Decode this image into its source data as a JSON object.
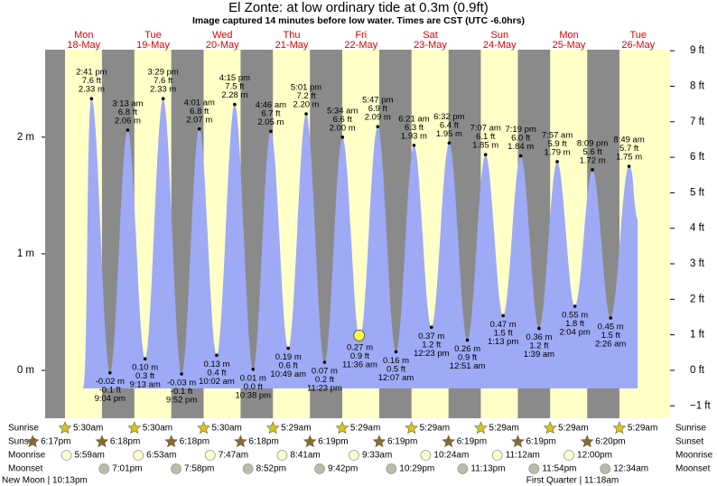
{
  "chart_data": {
    "type": "tide",
    "title": "El Zonte: at low  ordinary tide at 0.3m (0.9ft)",
    "subtitle": "Image captured 14 minutes before low water. Times are CST (UTC -6.0hrs)",
    "days": {
      "weekday": [
        null,
        "Mon",
        "Tue",
        "Wed",
        "Thu",
        "Fri",
        "Sat",
        "Sun",
        "Mon",
        "Tue"
      ],
      "date": [
        null,
        "18-May",
        "19-May",
        "20-May",
        "21-May",
        "22-May",
        "23-May",
        "24-May",
        "25-May",
        "26-May"
      ]
    },
    "series": [
      {
        "color": "#9eaaf6",
        "times": [
          "2:41 pm",
          "9:04 pm",
          "3:13 am",
          "9:13 am",
          "3:29 pm",
          "9:52 pm",
          "4:01 am",
          "10:02 am",
          "4:15 pm",
          "10:38 pm",
          "4:46 am",
          "10:49 am",
          "5:01 pm",
          "11:23 pm",
          "5:34 am",
          "11:36 am",
          "5:47 pm",
          "12:07 am",
          "6:21 am",
          "12:23 pm",
          "6:32 pm",
          "12:51 am",
          "7:07 am",
          "1:13 pm",
          "7:19 pm",
          "1:39 am",
          "7:57 am",
          "2:04 pm",
          "8:09 pm",
          "2:26 am",
          "8:49 am"
        ],
        "values": [
          2.33,
          -0.02,
          2.06,
          0.1,
          2.33,
          -0.03,
          2.07,
          0.13,
          2.28,
          0.01,
          2.05,
          0.19,
          2.2,
          0.07,
          2.0,
          0.27,
          2.09,
          0.16,
          1.93,
          0.37,
          1.95,
          0.26,
          1.85,
          0.47,
          1.84,
          0.36,
          1.79,
          0.55,
          1.72,
          0.45,
          1.75
        ],
        "value_labels": [
          "2.33 m",
          "-0.02 m",
          "2.06 m",
          "0.10 m",
          "2.33 m",
          "-0.03 m",
          "2.07 m",
          "0.13 m",
          "2.28 m",
          "0.01 m",
          "2.05 m",
          "0.19 m",
          "2.20 m",
          "0.07 m",
          "2.00 m",
          "0.27 m",
          "2.09 m",
          "0.16 m",
          "1.93 m",
          "0.37 m",
          "1.95 m",
          "0.26 m",
          "1.85 m",
          "0.47 m",
          "1.84 m",
          "0.36 m",
          "1.79 m",
          "0.55 m",
          "1.72 m",
          "0.45 m",
          "1.75 m"
        ],
        "ft_labels": [
          "7.6 ft",
          "-0.1 ft",
          "6.8 ft",
          "0.3 ft",
          "7.6 ft",
          "-0.1 ft",
          "6.8 ft",
          "0.4 ft",
          "7.5 ft",
          "0.0 ft",
          "6.7 ft",
          "0.6 ft",
          "7.2 ft",
          "0.2 ft",
          "6.6 ft",
          "0.9 ft",
          "6.9 ft",
          "0.5 ft",
          "6.3 ft",
          "1.2 ft",
          "6.4 ft",
          "0.9 ft",
          "6.1 ft",
          "1.5 ft",
          "6.0 ft",
          "1.2 ft",
          "5.9 ft",
          "1.8 ft",
          "5.6 ft",
          "1.5 ft",
          "5.7 ft"
        ]
      }
    ],
    "current": {
      "value": 0.3,
      "minutes_before_low": 14,
      "color": "#ffff44"
    },
    "ylim": [
      -0.41,
      2.75
    ],
    "yticks": [
      {
        "value": 0,
        "label": "0 m"
      },
      {
        "value": 1,
        "label": "1 m"
      },
      {
        "value": 2,
        "label": "2 m"
      }
    ],
    "y2lim": [
      -1.35,
      9.03
    ],
    "y2ticks": [
      {
        "value": -1,
        "label": "−1 ft"
      },
      {
        "value": 0,
        "label": "0 ft"
      },
      {
        "value": 1,
        "label": "1 ft"
      },
      {
        "value": 2,
        "label": "2 ft"
      },
      {
        "value": 3,
        "label": "3 ft"
      },
      {
        "value": 4,
        "label": "4 ft"
      },
      {
        "value": 5,
        "label": "5 ft"
      },
      {
        "value": 6,
        "label": "6 ft"
      },
      {
        "value": 7,
        "label": "7 ft"
      },
      {
        "value": 8,
        "label": "8 ft"
      },
      {
        "value": 9,
        "label": "9 ft"
      }
    ],
    "day_color": "#ffffc8",
    "night_color": "#8a8a8a",
    "astronomy": [
      {
        "label": "Sunrise",
        "color": "#d8c41c",
        "times": [
          null,
          "5:30am",
          "5:30am",
          "5:30am",
          "5:29am",
          "5:29am",
          "5:29am",
          "5:29am",
          "5:29am",
          "5:29am"
        ]
      },
      {
        "label": "Sunset",
        "color": "#8a6a2e",
        "times": [
          "6:17pm",
          "6:18pm",
          "6:18pm",
          "6:18pm",
          "6:19pm",
          "6:19pm",
          "6:19pm",
          "6:19pm",
          "6:20pm",
          null
        ]
      },
      {
        "label": "Moonrise",
        "color": "#ffffd0",
        "times": [
          null,
          "5:59am",
          "6:53am",
          "7:47am",
          "8:41am",
          "9:33am",
          "10:24am",
          "11:12am",
          "12:00pm",
          null
        ]
      },
      {
        "label": "Moonset",
        "color": "#bbbbaa",
        "times": [
          null,
          "7:01pm",
          "7:58pm",
          "8:52pm",
          "9:42pm",
          "10:29pm",
          "11:13pm",
          "11:54pm",
          null,
          "12:34am"
        ]
      }
    ],
    "moon_phases": [
      "New Moon | 10:13pm",
      "First Quarter | 11:18am"
    ]
  }
}
